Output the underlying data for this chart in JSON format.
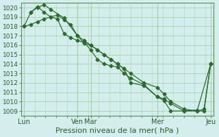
{
  "bg_color": "#d4eeee",
  "grid_color": "#b0d4b0",
  "line_color": "#2d6a2d",
  "marker_color": "#2d6a2d",
  "ylabel_vals": [
    1009,
    1010,
    1011,
    1012,
    1013,
    1014,
    1015,
    1016,
    1017,
    1018,
    1019,
    1020
  ],
  "ylim": [
    1008.5,
    1020.5
  ],
  "x_tick_positions": [
    0,
    4,
    5,
    10,
    14
  ],
  "x_tick_labels": [
    "Lun",
    "Ven",
    "Mar",
    "Mer",
    "Jeu"
  ],
  "xlabel": "Pression niveau de la mer( hPa )",
  "series1_x": [
    0,
    0.5,
    1,
    1.5,
    2,
    2.5,
    3,
    3.5,
    4,
    4.5,
    5,
    5.5,
    6,
    6.5,
    7,
    7.5,
    8,
    9,
    10,
    10.5,
    11,
    12,
    13,
    13.5,
    14
  ],
  "series1_y": [
    1018,
    1018.2,
    1018.5,
    1018.8,
    1019,
    1019.2,
    1018.7,
    1018.2,
    1017,
    1016.5,
    1016,
    1015.5,
    1015,
    1014.5,
    1014,
    1013.5,
    1013,
    1012,
    1011.5,
    1010.8,
    1010,
    1009.2,
    1009,
    1009,
    1014
  ],
  "series2_x": [
    0,
    0.5,
    1,
    1.5,
    2,
    3,
    4,
    4.5,
    5,
    5.5,
    6,
    6.5,
    7,
    7.5,
    8,
    9,
    10,
    10.5,
    11,
    12,
    13,
    13.5,
    14
  ],
  "series2_y": [
    1018,
    1019.5,
    1020,
    1020.3,
    1019.8,
    1018.9,
    1017,
    1016.2,
    1016,
    1015.5,
    1015,
    1014.5,
    1014,
    1013.5,
    1012,
    1011.7,
    1010.5,
    1010.3,
    1009.8,
    1009,
    1009,
    1009.2,
    1014
  ],
  "series3_x": [
    0.5,
    1,
    1.5,
    2,
    2.5,
    3,
    3.5,
    4,
    4.5,
    5,
    5.5,
    6,
    6.5,
    7,
    7.5,
    8,
    9,
    10,
    10.5,
    11,
    12,
    13,
    14
  ],
  "series3_y": [
    1019.5,
    1020.1,
    1019.5,
    1019,
    1018.8,
    1017.2,
    1016.8,
    1016.5,
    1016.3,
    1015.5,
    1014.5,
    1014,
    1013.8,
    1013.7,
    1013,
    1012.5,
    1011.8,
    1010.5,
    1010.1,
    1009,
    1009,
    1009.1,
    1014
  ]
}
